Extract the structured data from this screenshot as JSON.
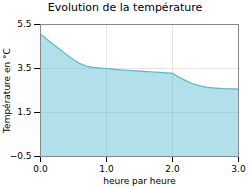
{
  "chart_data": {
    "type": "area",
    "title": "Evolution de la température",
    "xlabel": "heure par heure",
    "ylabel": "Température en °C",
    "x": [
      0,
      0.05,
      0.1,
      0.2,
      0.3,
      0.4,
      0.5,
      0.6,
      0.7,
      0.8,
      0.9,
      1.0,
      1.1,
      1.2,
      1.3,
      1.4,
      1.5,
      1.6,
      1.7,
      1.8,
      1.9,
      2.0,
      2.1,
      2.2,
      2.3,
      2.4,
      2.5,
      2.6,
      2.7,
      2.8,
      2.9,
      3.0
    ],
    "values": [
      5.05,
      4.95,
      4.82,
      4.58,
      4.35,
      4.12,
      3.9,
      3.72,
      3.6,
      3.55,
      3.52,
      3.5,
      3.47,
      3.44,
      3.42,
      3.4,
      3.38,
      3.36,
      3.34,
      3.32,
      3.3,
      3.28,
      3.1,
      2.95,
      2.82,
      2.72,
      2.65,
      2.62,
      2.6,
      2.58,
      2.57,
      2.56
    ],
    "color": "#55bbd0",
    "xlim": [
      0,
      3
    ],
    "ylim": [
      -0.5,
      5.5
    ],
    "xticks": [
      0,
      1,
      2,
      3
    ],
    "yticks": [
      -0.5,
      1.5,
      3.5,
      5.5
    ],
    "grid": true
  }
}
